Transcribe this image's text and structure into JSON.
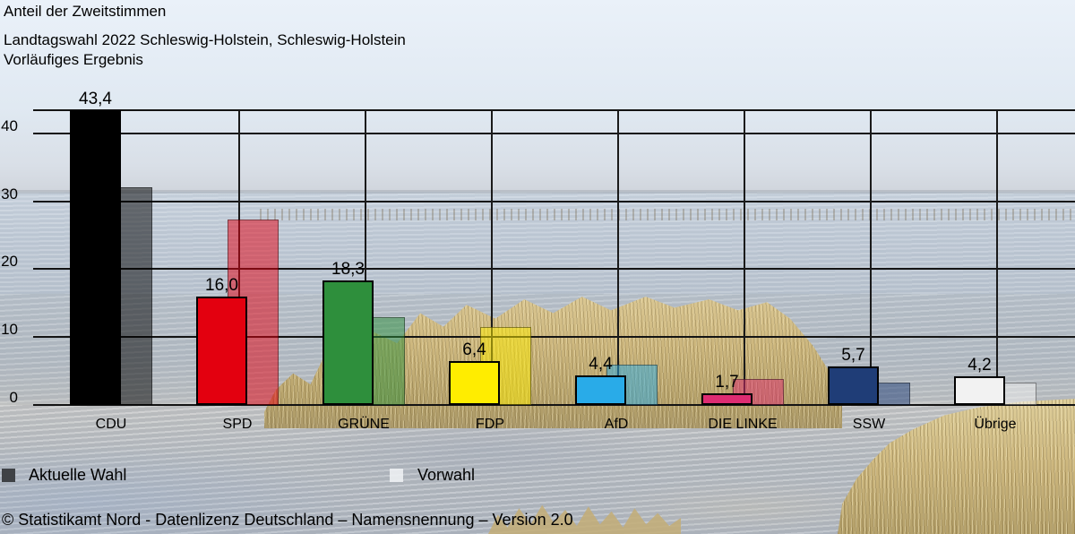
{
  "header": {
    "title": "Anteil der Zweitstimmen",
    "subtitle_line1": "Landtagswahl 2022 Schleswig-Holstein, Schleswig-Holstein",
    "subtitle_line2": "Vorläufiges Ergebnis"
  },
  "legend": {
    "current_label": "Aktuelle Wahl",
    "previous_label": "Vorwahl"
  },
  "footer": {
    "text": "© Statistikamt Nord - Datenlizenz Deutschland – Namensnennung – Version 2.0"
  },
  "chart_data": {
    "type": "bar",
    "title": "Anteil der Zweitstimmen",
    "subtitle": "Landtagswahl 2022 Schleswig-Holstein, Schleswig-Holstein — Vorläufiges Ergebnis",
    "categories": [
      "CDU",
      "SPD",
      "GRÜNE",
      "FDP",
      "AfD",
      "DIE LINKE",
      "SSW",
      "Übrige"
    ],
    "series": [
      {
        "name": "Aktuelle Wahl",
        "values": [
          43.4,
          16.0,
          18.3,
          6.4,
          4.4,
          1.7,
          5.7,
          4.2
        ],
        "labels": [
          "43,4",
          "16,0",
          "18,3",
          "6,4",
          "4,4",
          "1,7",
          "5,7",
          "4,2"
        ]
      },
      {
        "name": "Vorwahl",
        "values": [
          32.0,
          27.3,
          12.9,
          11.5,
          5.9,
          3.8,
          3.3,
          3.3
        ]
      }
    ],
    "bar_colors": [
      "#000000",
      "#e3000f",
      "#2e8f3c",
      "#ffed00",
      "#29abe8",
      "#dd2c72",
      "#1f3d77",
      "#f2f2f2"
    ],
    "yticks": [
      0,
      10,
      20,
      30,
      40
    ],
    "ylim": [
      0,
      43.4
    ],
    "xlabel": "",
    "ylabel": "",
    "grid": true,
    "legend_position": "bottom-left",
    "value_decimal_separator": ","
  }
}
